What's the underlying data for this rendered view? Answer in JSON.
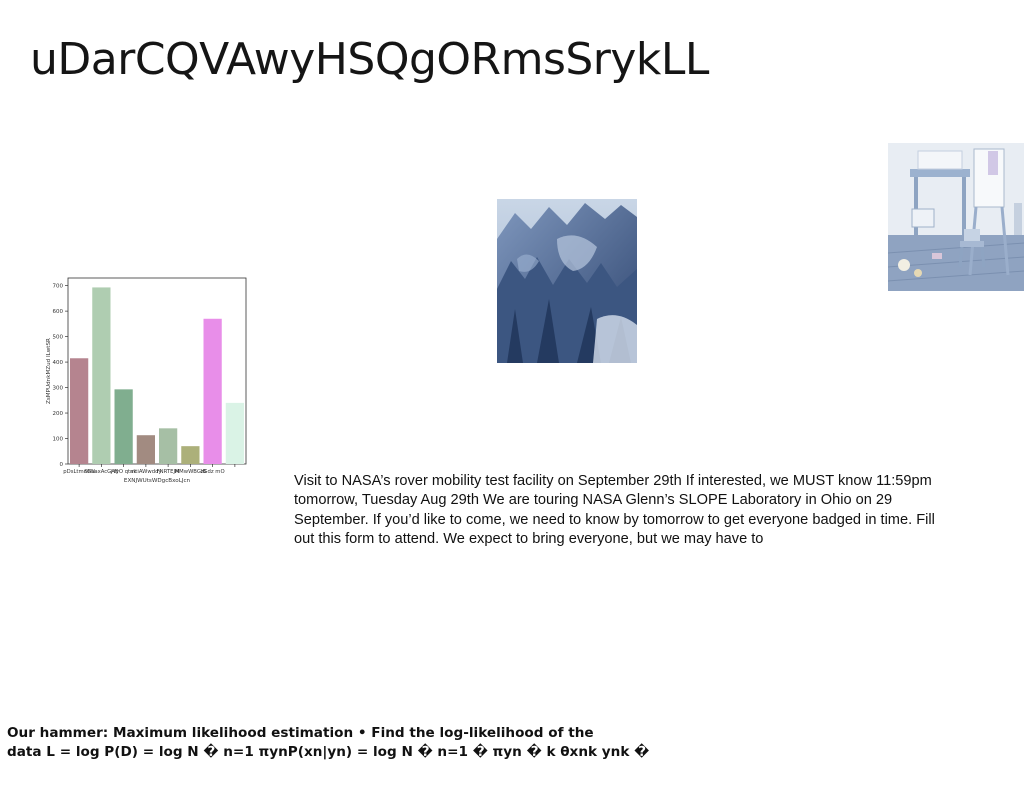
{
  "slide": {
    "title": "uDarCQVAwyHSQgORmsSrykLL",
    "body_text": "Visit to NASA’s rover mobility test facility on September 29th If interested, we MUST know 11:59pm tomorrow, Tuesday Aug 29th We are touring NASA Glenn’s SLOPE Laboratory in Ohio on 29 September. If you’d like to come, we need to know by tomorrow to get everyone badged in time. Fill out this form to attend. We expect to bring everyone, but we may have to",
    "footer_lines": [
      "Our hammer: Maximum likelihood estimation • Find the log-likelihood of the",
      "data L = log P(D) = log N � n=1 πynP(xn|yn) = log N � n=1 � πyn � k θxnk ynk �"
    ],
    "images": [
      {
        "name": "rock-formations-photo"
      },
      {
        "name": "kids-room-photo"
      }
    ]
  },
  "chart_data": {
    "type": "bar",
    "categories": [
      "pDsLtmeGN",
      "SBvaxAcGAB",
      "j fyO qtak",
      "mtiAWwddy",
      "FNRTEJM",
      "MMwWBGIB",
      "zGdz mO",
      ""
    ],
    "category_labels": [
      "pDsLtmeGN",
      "SBvaxAcGAB",
      "j fyO qtak",
      "mtiAWwddy",
      "FNRTEJM",
      "MMwWBGIB",
      "zGdz mO"
    ],
    "values": [
      415,
      693,
      293,
      113,
      140,
      70,
      570,
      240
    ],
    "colors": [
      "#b5848f",
      "#afcdb1",
      "#80ae8f",
      "#a28b81",
      "#a6bfa5",
      "#acb07a",
      "#e88ee9",
      "#daf3e6"
    ],
    "xlabel": "EXNJWUtsWDgcBxoLJcn",
    "ylabel": "ZsMPUdnkMZud ILwtSR",
    "ylim": [
      0,
      730
    ],
    "yticks": [
      0,
      100,
      200,
      300,
      400,
      500,
      600,
      700
    ],
    "grid": false
  }
}
